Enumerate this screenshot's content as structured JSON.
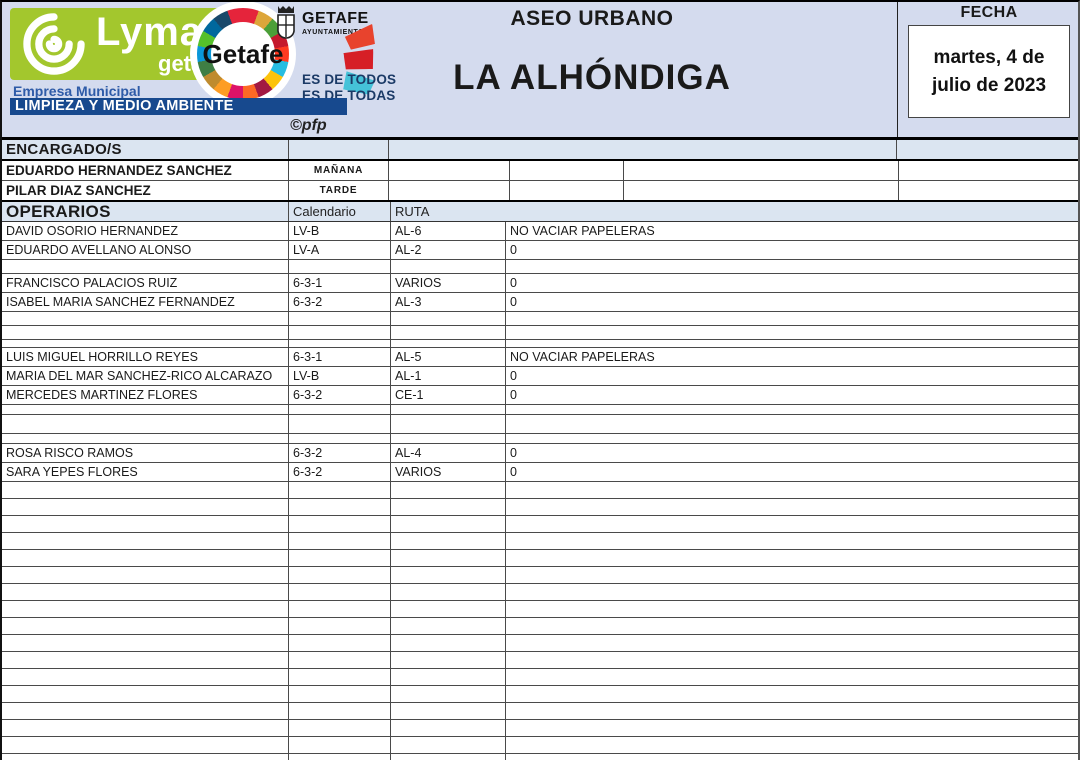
{
  "header": {
    "title": "ASEO URBANO",
    "subtitle": "LA ALHÓNDIGA",
    "fecha_label": "FECHA",
    "date_line1": "martes, 4 de",
    "date_line2": "julio de 2023",
    "lyma": {
      "brand": "Lyma",
      "brand_sub": "getafe",
      "empresa": "Empresa Municipal",
      "department_bar": "LIMPIEZA Y MEDIO AMBIENTE",
      "copyright": "©pfp"
    },
    "getafe": {
      "wheel_label": "Getafe",
      "city": "GETAFE",
      "city_sub": "AYUNTAMIENTO",
      "slogan_line1": "ES DE TODOS",
      "slogan_line2": "ES DE TODAS"
    }
  },
  "encargados": {
    "section_label": "ENCARGADO/S",
    "rows": [
      {
        "name": "EDUARDO HERNANDEZ SANCHEZ",
        "shift": "MAÑANA"
      },
      {
        "name": "PILAR DIAZ SANCHEZ",
        "shift": "TARDE"
      }
    ]
  },
  "operarios": {
    "section_label": "OPERARIOS",
    "columns": {
      "calendario": "Calendario",
      "ruta": "RUTA"
    },
    "rows": [
      {
        "name": "DAVID OSORIO HERNANDEZ",
        "calendario": "LV-B",
        "ruta": "AL-6",
        "nota": "NO VACIAR PAPELERAS"
      },
      {
        "name": "EDUARDO AVELLANO ALONSO",
        "calendario": "LV-A",
        "ruta": "AL-2",
        "nota": "0"
      },
      {},
      {
        "name": "FRANCISCO PALACIOS RUIZ",
        "calendario": "6-3-1",
        "ruta": "VARIOS",
        "nota": "0"
      },
      {
        "name": "ISABEL MARIA SANCHEZ FERNANDEZ",
        "calendario": "6-3-2",
        "ruta": "AL-3",
        "nota": "0"
      },
      {},
      {},
      {},
      {
        "name": "LUIS MIGUEL HORRILLO REYES",
        "calendario": "6-3-1",
        "ruta": "AL-5",
        "nota": "NO VACIAR PAPELERAS"
      },
      {
        "name": "MARIA DEL MAR SANCHEZ-RICO ALCARAZO",
        "calendario": "LV-B",
        "ruta": "AL-1",
        "nota": "0"
      },
      {
        "name": "MERCEDES MARTINEZ FLORES",
        "calendario": "6-3-2",
        "ruta": "CE-1",
        "nota": "0"
      },
      {},
      {},
      {},
      {
        "name": "ROSA RISCO RAMOS",
        "calendario": "6-3-2",
        "ruta": "AL-4",
        "nota": "0"
      },
      {
        "name": "SARA YEPES FLORES",
        "calendario": "6-3-2",
        "ruta": "VARIOS",
        "nota": "0"
      }
    ]
  },
  "colors": {
    "header_bg": "#d4dbee",
    "band": "#dbe5f1",
    "lyma_green": "#a3c72d",
    "bar_blue": "#17498e",
    "empresa_blue": "#2e5ba8",
    "slogan_navy": "#1b3a66",
    "stroke_colors": [
      "#e8432d",
      "#d61f26",
      "#45c2d8"
    ],
    "sdg_wheel_colors": [
      "#e5243b",
      "#dda63a",
      "#4c9f38",
      "#c5192d",
      "#ff3a21",
      "#26bde2",
      "#fcc30b",
      "#a21942",
      "#fd6925",
      "#dd1367",
      "#fd9d24",
      "#bf8b2e",
      "#3f7e44",
      "#0a97d9",
      "#56c02b",
      "#00689d",
      "#19486a",
      "#e5243b"
    ]
  }
}
